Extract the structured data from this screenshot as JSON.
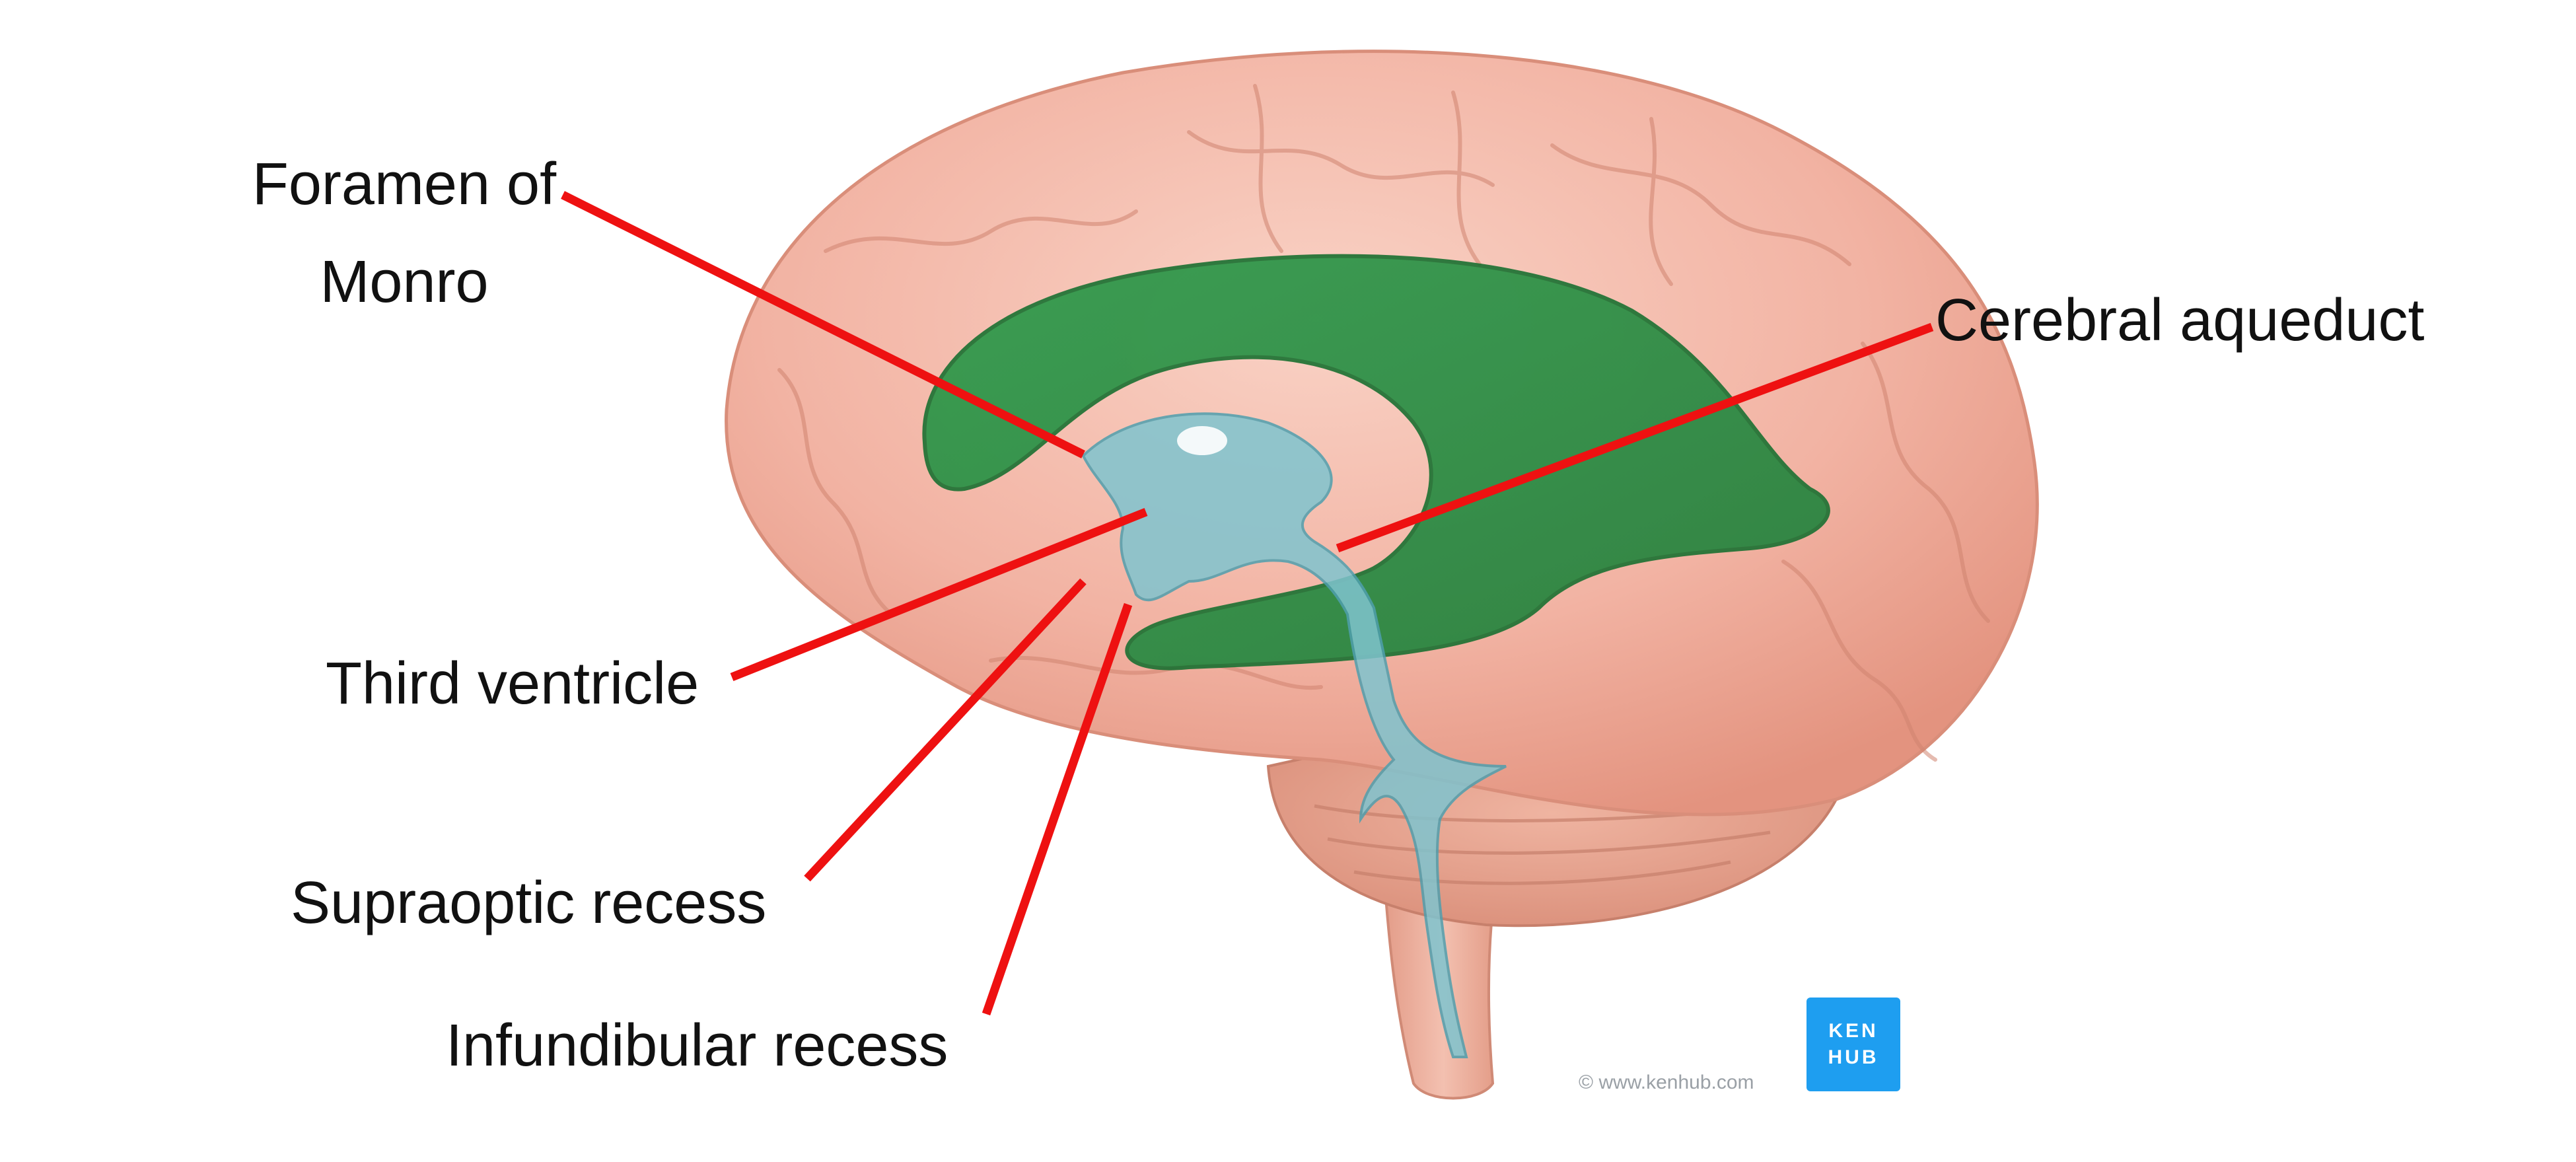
{
  "labels": {
    "foramen_line1": "Foramen of",
    "foramen_line2": "Monro",
    "cerebral_aqueduct": "Cerebral aqueduct",
    "third_ventricle": "Third ventricle",
    "supraoptic_recess": "Supraoptic recess",
    "infundibular_recess": "Infundibular recess"
  },
  "watermark": {
    "copyright": "© www.kenhub.com",
    "logo_line1": "KEN",
    "logo_line2": "HUB"
  },
  "colors": {
    "leader_line": "#ee1111",
    "lateral_ventricle": "#2f9e4f",
    "third_ventricle_fluid": "#7fc4cf",
    "brain": "#f2b3a3",
    "logo": "#1e9ef0"
  }
}
